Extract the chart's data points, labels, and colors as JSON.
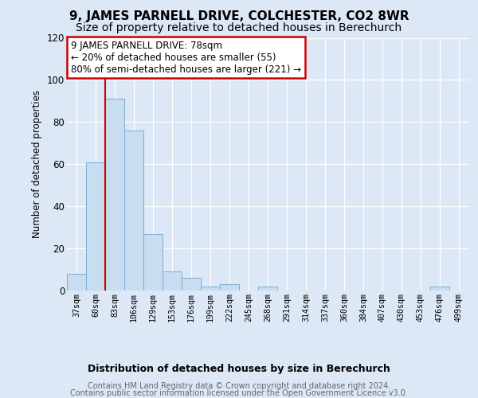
{
  "title": "9, JAMES PARNELL DRIVE, COLCHESTER, CO2 8WR",
  "subtitle": "Size of property relative to detached houses in Berechurch",
  "xlabel": "Distribution of detached houses by size in Berechurch",
  "ylabel": "Number of detached properties",
  "bin_labels": [
    "37sqm",
    "60sqm",
    "83sqm",
    "106sqm",
    "129sqm",
    "153sqm",
    "176sqm",
    "199sqm",
    "222sqm",
    "245sqm",
    "268sqm",
    "291sqm",
    "314sqm",
    "337sqm",
    "360sqm",
    "384sqm",
    "407sqm",
    "430sqm",
    "453sqm",
    "476sqm",
    "499sqm"
  ],
  "bar_values": [
    8,
    61,
    91,
    76,
    27,
    9,
    6,
    2,
    3,
    0,
    2,
    0,
    0,
    0,
    0,
    0,
    0,
    0,
    0,
    2,
    0
  ],
  "bar_color": "#c9ddf0",
  "bar_edge_color": "#7bafd4",
  "vline_color": "#cc0000",
  "ylim": [
    0,
    120
  ],
  "yticks": [
    0,
    20,
    40,
    60,
    80,
    100,
    120
  ],
  "annotation_line1": "9 JAMES PARNELL DRIVE: 78sqm",
  "annotation_line2": "← 20% of detached houses are smaller (55)",
  "annotation_line3": "80% of semi-detached houses are larger (221) →",
  "annotation_box_color": "white",
  "annotation_box_edge": "#cc0000",
  "footer_line1": "Contains HM Land Registry data © Crown copyright and database right 2024.",
  "footer_line2": "Contains public sector information licensed under the Open Government Licence v3.0.",
  "bg_color": "#dce8f5",
  "plot_bg_color": "#dce8f5",
  "grid_color": "#ffffff",
  "title_fontsize": 11,
  "subtitle_fontsize": 10
}
